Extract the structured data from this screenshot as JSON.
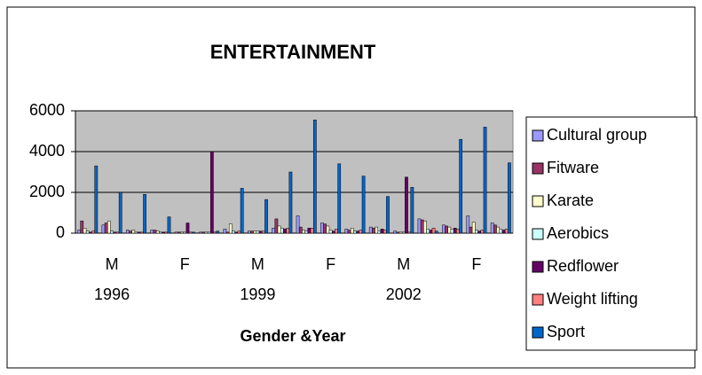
{
  "chart_data": {
    "type": "bar",
    "title": "ENTERTAINMENT",
    "x_label": "Gender &Year",
    "categories": [
      null,
      "M",
      null,
      null,
      "F",
      null,
      null,
      "M",
      null,
      null,
      "F",
      null,
      null,
      "M",
      null,
      null,
      "F",
      null
    ],
    "years": [
      null,
      "1996",
      null,
      null,
      null,
      null,
      null,
      "1999",
      null,
      null,
      null,
      null,
      null,
      "2002",
      null,
      null,
      null,
      null
    ],
    "series": [
      {
        "name": "Cultural group",
        "color": "#9999ff",
        "values": [
          150,
          400,
          150,
          150,
          50,
          50,
          200,
          100,
          250,
          850,
          500,
          200,
          300,
          100,
          700,
          400,
          850,
          500
        ]
      },
      {
        "name": "Fitware",
        "color": "#993366",
        "values": [
          600,
          500,
          100,
          150,
          50,
          50,
          50,
          100,
          700,
          300,
          450,
          150,
          250,
          50,
          650,
          350,
          300,
          400
        ]
      },
      {
        "name": "Karate",
        "color": "#ffffcc",
        "values": [
          250,
          600,
          150,
          100,
          50,
          50,
          450,
          100,
          350,
          150,
          350,
          250,
          300,
          50,
          600,
          300,
          550,
          300
        ]
      },
      {
        "name": "Aerobics",
        "color": "#ccffff",
        "values": [
          100,
          100,
          50,
          50,
          50,
          50,
          100,
          100,
          250,
          100,
          150,
          100,
          100,
          50,
          200,
          200,
          150,
          200
        ]
      },
      {
        "name": "Redflower",
        "color": "#660066",
        "values": [
          50,
          50,
          50,
          50,
          500,
          4000,
          50,
          100,
          200,
          250,
          100,
          100,
          200,
          2750,
          150,
          250,
          100,
          150
        ]
      },
      {
        "name": "Weight lifting",
        "color": "#ff8080",
        "values": [
          100,
          50,
          50,
          50,
          50,
          50,
          100,
          100,
          250,
          250,
          200,
          150,
          150,
          50,
          250,
          200,
          150,
          200
        ]
      },
      {
        "name": "Sport",
        "color": "#0066cc",
        "values": [
          3300,
          2000,
          1900,
          800,
          50,
          100,
          2200,
          1650,
          3000,
          5550,
          3400,
          2800,
          1800,
          2250,
          100,
          4600,
          5200,
          3450
        ]
      }
    ],
    "ylim": [
      0,
      6000
    ],
    "yticks": [
      0,
      2000,
      4000,
      6000
    ],
    "grid": true,
    "plot_background": "#c0c0c0",
    "legend": "right"
  }
}
